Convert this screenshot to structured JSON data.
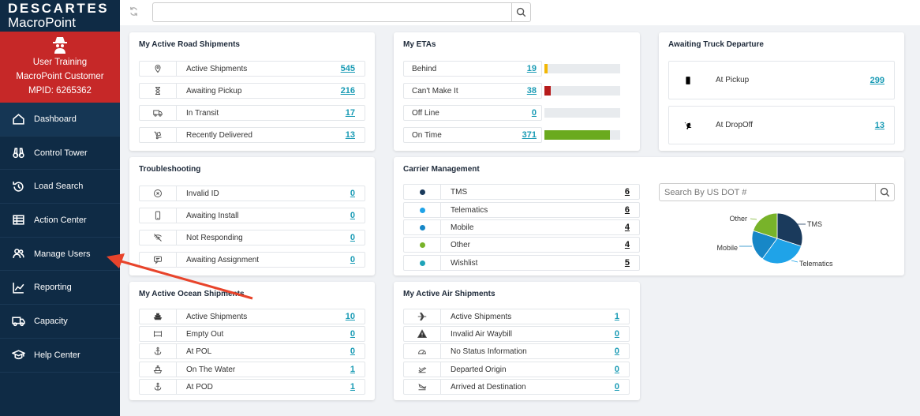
{
  "sidebar": {
    "logo_line1": "DESCARTES",
    "logo_line2": "MacroPoint",
    "user": {
      "name": "User Training",
      "company": "MacroPoint Customer",
      "mpid": "MPID: 6265362"
    },
    "items": [
      {
        "label": "Dashboard",
        "icon": "home-icon"
      },
      {
        "label": "Control Tower",
        "icon": "binoculars-icon"
      },
      {
        "label": "Load Search",
        "icon": "history-icon"
      },
      {
        "label": "Action Center",
        "icon": "table-icon"
      },
      {
        "label": "Manage Users",
        "icon": "users-icon"
      },
      {
        "label": "Reporting",
        "icon": "line-chart-icon"
      },
      {
        "label": "Capacity",
        "icon": "truck-icon"
      },
      {
        "label": "Help Center",
        "icon": "graduation-cap-icon"
      }
    ]
  },
  "search": {
    "placeholder": ""
  },
  "road": {
    "title": "My Active Road Shipments",
    "rows": [
      {
        "label": "Active Shipments",
        "value": "545",
        "icon": "map-pin-icon"
      },
      {
        "label": "Awaiting Pickup",
        "value": "216",
        "icon": "hourglass-icon"
      },
      {
        "label": "In Transit",
        "value": "17",
        "icon": "truck-icon"
      },
      {
        "label": "Recently Delivered",
        "value": "13",
        "icon": "dolly-icon"
      }
    ]
  },
  "etas": {
    "title": "My ETAs",
    "rows": [
      {
        "label": "Behind",
        "value": "19",
        "fill": 0.04,
        "color": "#f2b705"
      },
      {
        "label": "Can't Make It",
        "value": "38",
        "fill": 0.08,
        "color": "#b71c1c"
      },
      {
        "label": "Off Line",
        "value": "0",
        "fill": 0,
        "color": "#888888"
      },
      {
        "label": "On Time",
        "value": "371",
        "fill": 0.86,
        "color": "#6aaa1e"
      }
    ]
  },
  "truck": {
    "title": "Awaiting Truck Departure",
    "rows": [
      {
        "label": "At Pickup",
        "value": "299",
        "icon": "mobile-icon"
      },
      {
        "label": "At DropOff",
        "value": "13",
        "icon": "dolly-icon"
      }
    ]
  },
  "trouble": {
    "title": "Troubleshooting",
    "rows": [
      {
        "label": "Invalid ID",
        "value": "0",
        "icon": "cancel-circle-icon"
      },
      {
        "label": "Awaiting Install",
        "value": "0",
        "icon": "mobile-icon"
      },
      {
        "label": "Not Responding",
        "value": "0",
        "icon": "wifi-off-icon"
      },
      {
        "label": "Awaiting Assignment",
        "value": "0",
        "icon": "chat-icon"
      }
    ]
  },
  "carrier": {
    "title": "Carrier Management",
    "rows": [
      {
        "label": "TMS",
        "value": "6",
        "color": "#1a3a5c"
      },
      {
        "label": "Telematics",
        "value": "6",
        "color": "#1fa3e8"
      },
      {
        "label": "Mobile",
        "value": "4",
        "color": "#1787c7"
      },
      {
        "label": "Other",
        "value": "4",
        "color": "#78b32a"
      },
      {
        "label": "Wishlist",
        "value": "5",
        "color": "#1ea3b8"
      }
    ],
    "dot_search_placeholder": "Search By US DOT #",
    "chart_data": {
      "type": "pie",
      "categories": [
        "TMS",
        "Telematics",
        "Mobile",
        "Other"
      ],
      "values": [
        6,
        6,
        4,
        4
      ],
      "colors": [
        "#1a3a5c",
        "#1fa3e8",
        "#1787c7",
        "#78b32a"
      ]
    }
  },
  "ocean": {
    "title": "My Active Ocean Shipments",
    "rows": [
      {
        "label": "Active Shipments",
        "value": "10",
        "icon": "ship-icon"
      },
      {
        "label": "Empty Out",
        "value": "0",
        "icon": "container-icon"
      },
      {
        "label": "At POL",
        "value": "0",
        "icon": "anchor-icon"
      },
      {
        "label": "On The Water",
        "value": "1",
        "icon": "boat-icon"
      },
      {
        "label": "At POD",
        "value": "1",
        "icon": "anchor-icon"
      }
    ]
  },
  "air": {
    "title": "My Active Air Shipments",
    "rows": [
      {
        "label": "Active Shipments",
        "value": "1",
        "icon": "plane-icon"
      },
      {
        "label": "Invalid Air Waybill",
        "value": "0",
        "icon": "warning-icon"
      },
      {
        "label": "No Status Information",
        "value": "0",
        "icon": "gauge-icon"
      },
      {
        "label": "Departed Origin",
        "value": "0",
        "icon": "plane-departure-icon"
      },
      {
        "label": "Arrived at Destination",
        "value": "0",
        "icon": "plane-arrival-icon"
      }
    ]
  }
}
